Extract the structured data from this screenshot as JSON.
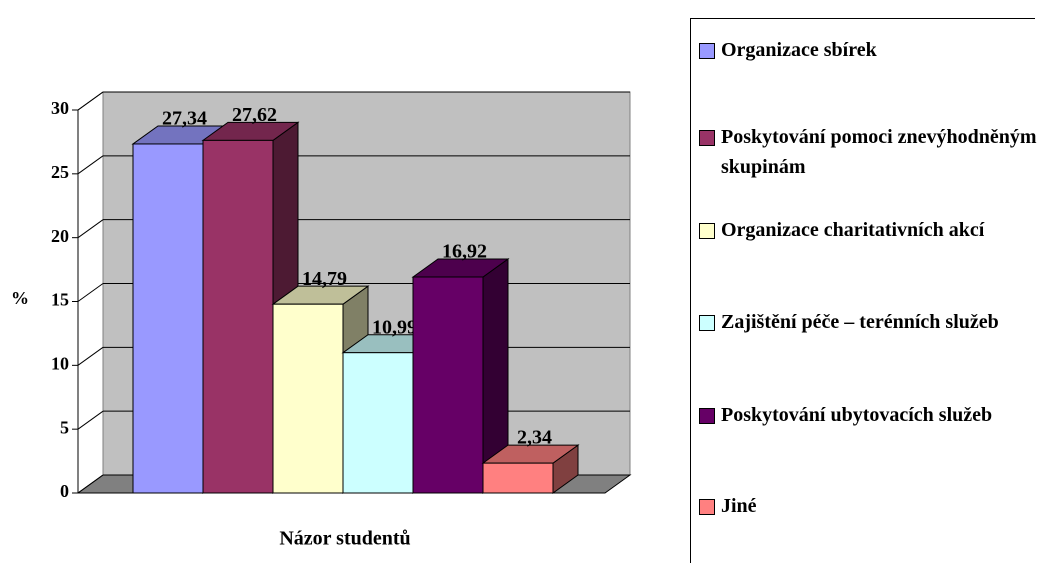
{
  "chart_data": {
    "type": "bar3d",
    "categories": [
      "Názor studentů"
    ],
    "y_label": "%",
    "ylim": [
      0,
      30
    ],
    "yticks": [
      0,
      5,
      10,
      15,
      20,
      25,
      30
    ],
    "grid": true,
    "legend": "right",
    "series": [
      {
        "name": "Organizace sbírek",
        "color": "#9999ff",
        "values": [
          27.34
        ],
        "value_labels": [
          "27,34"
        ]
      },
      {
        "name": "Poskytování pomoci znevýhodněným skupinám",
        "color": "#993366",
        "values": [
          27.62
        ],
        "value_labels": [
          "27,62"
        ]
      },
      {
        "name": "Organizace charitativních akcí",
        "color": "#ffffcc",
        "values": [
          14.79
        ],
        "value_labels": [
          "14,79"
        ]
      },
      {
        "name": "Zajištění péče – terénních služeb",
        "color": "#ccffff",
        "values": [
          10.99
        ],
        "value_labels": [
          "10,99"
        ]
      },
      {
        "name": "Poskytování ubytovacích služeb",
        "color": "#660066",
        "values": [
          16.92
        ],
        "value_labels": [
          "16,92"
        ]
      },
      {
        "name": "Jiné",
        "color": "#ff8080",
        "values": [
          2.34
        ],
        "value_labels": [
          "2,34"
        ]
      }
    ]
  }
}
